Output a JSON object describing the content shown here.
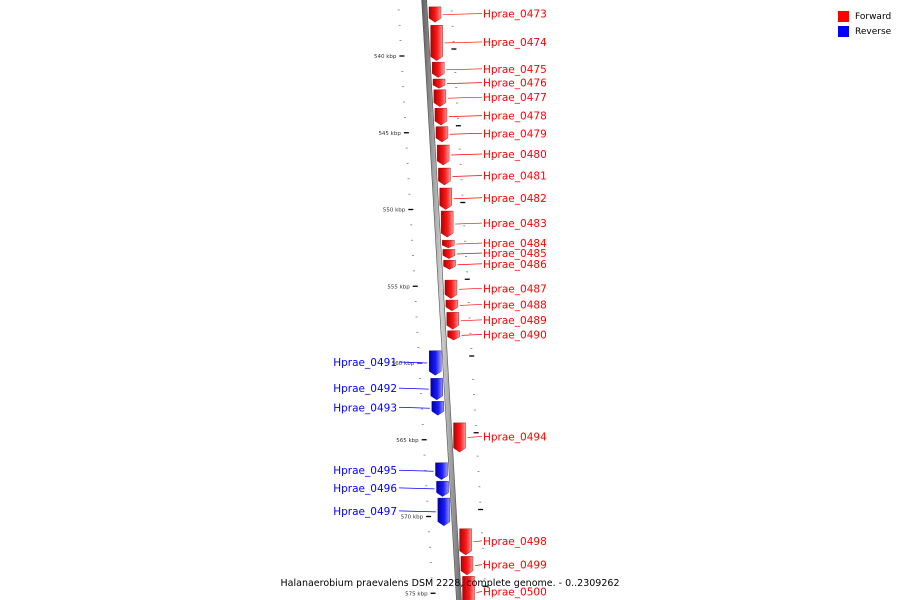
{
  "colors": {
    "forward": "#ff0000",
    "reverse": "#0000ff",
    "axis": "#808080"
  },
  "legend": {
    "items": [
      {
        "label": "Forward",
        "color": "#ff0000"
      },
      {
        "label": "Reverse",
        "color": "#0000ff"
      }
    ]
  },
  "caption": "Halanaerobium praevalens DSM 2228, complete genome. - 0..2309262",
  "scale_marks": [
    {
      "label": "540 kbp",
      "kbp": 540
    },
    {
      "label": "545 kbp",
      "kbp": 545
    },
    {
      "label": "550 kbp",
      "kbp": 550
    },
    {
      "label": "555 kbp",
      "kbp": 555
    },
    {
      "label": "560 kbp",
      "kbp": 560
    },
    {
      "label": "565 kbp",
      "kbp": 565
    },
    {
      "label": "570 kbp",
      "kbp": 570
    },
    {
      "label": "575 kbp",
      "kbp": 575
    }
  ],
  "genes": [
    {
      "name": "Hprae_0473",
      "strand": "forward",
      "start_kbp": 536.8,
      "end_kbp": 537.8
    },
    {
      "name": "Hprae_0474",
      "strand": "forward",
      "start_kbp": 538.0,
      "end_kbp": 540.3
    },
    {
      "name": "Hprae_0475",
      "strand": "forward",
      "start_kbp": 540.4,
      "end_kbp": 541.4
    },
    {
      "name": "Hprae_0476",
      "strand": "forward",
      "start_kbp": 541.5,
      "end_kbp": 542.1
    },
    {
      "name": "Hprae_0477",
      "strand": "forward",
      "start_kbp": 542.2,
      "end_kbp": 543.3
    },
    {
      "name": "Hprae_0478",
      "strand": "forward",
      "start_kbp": 543.4,
      "end_kbp": 544.5
    },
    {
      "name": "Hprae_0479",
      "strand": "forward",
      "start_kbp": 544.6,
      "end_kbp": 545.6
    },
    {
      "name": "Hprae_0480",
      "strand": "forward",
      "start_kbp": 545.8,
      "end_kbp": 547.1
    },
    {
      "name": "Hprae_0481",
      "strand": "forward",
      "start_kbp": 547.3,
      "end_kbp": 548.4
    },
    {
      "name": "Hprae_0482",
      "strand": "forward",
      "start_kbp": 548.6,
      "end_kbp": 550.0
    },
    {
      "name": "Hprae_0483",
      "strand": "forward",
      "start_kbp": 550.1,
      "end_kbp": 551.8
    },
    {
      "name": "Hprae_0484",
      "strand": "forward",
      "start_kbp": 552.0,
      "end_kbp": 552.5
    },
    {
      "name": "Hprae_0485",
      "strand": "forward",
      "start_kbp": 552.6,
      "end_kbp": 553.2
    },
    {
      "name": "Hprae_0486",
      "strand": "forward",
      "start_kbp": 553.3,
      "end_kbp": 553.9
    },
    {
      "name": "Hprae_0487",
      "strand": "forward",
      "start_kbp": 554.6,
      "end_kbp": 555.8
    },
    {
      "name": "Hprae_0488",
      "strand": "forward",
      "start_kbp": 555.9,
      "end_kbp": 556.6
    },
    {
      "name": "Hprae_0489",
      "strand": "forward",
      "start_kbp": 556.7,
      "end_kbp": 557.8
    },
    {
      "name": "Hprae_0490",
      "strand": "forward",
      "start_kbp": 557.9,
      "end_kbp": 558.5
    },
    {
      "name": "Hprae_0491",
      "strand": "reverse",
      "start_kbp": 559.2,
      "end_kbp": 560.8
    },
    {
      "name": "Hprae_0492",
      "strand": "reverse",
      "start_kbp": 561.0,
      "end_kbp": 562.4
    },
    {
      "name": "Hprae_0493",
      "strand": "reverse",
      "start_kbp": 562.5,
      "end_kbp": 563.4
    },
    {
      "name": "Hprae_0494",
      "strand": "forward",
      "start_kbp": 563.9,
      "end_kbp": 565.8
    },
    {
      "name": "Hprae_0495",
      "strand": "reverse",
      "start_kbp": 566.5,
      "end_kbp": 567.6
    },
    {
      "name": "Hprae_0496",
      "strand": "reverse",
      "start_kbp": 567.7,
      "end_kbp": 568.7
    },
    {
      "name": "Hprae_0497",
      "strand": "reverse",
      "start_kbp": 568.8,
      "end_kbp": 570.6
    },
    {
      "name": "Hprae_0498",
      "strand": "forward",
      "start_kbp": 570.8,
      "end_kbp": 572.5
    },
    {
      "name": "Hprae_0499",
      "strand": "forward",
      "start_kbp": 572.6,
      "end_kbp": 573.8
    },
    {
      "name": "Hprae_0500",
      "strand": "forward",
      "start_kbp": 573.9,
      "end_kbp": 576.0
    }
  ]
}
